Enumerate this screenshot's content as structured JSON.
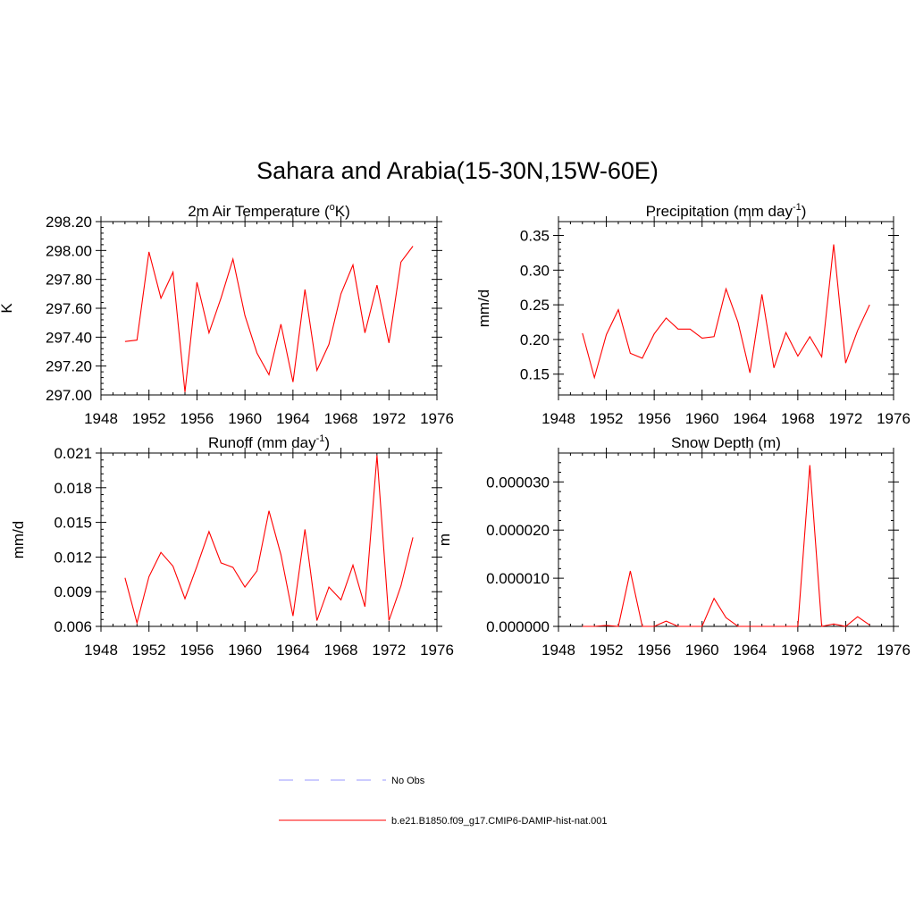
{
  "figure": {
    "title": "Sahara and Arabia(15-30N,15W-60E)"
  },
  "legend": {
    "entries": [
      {
        "label": "No Obs",
        "color": "#9999ff",
        "dash": true
      },
      {
        "label": "b.e21.B1850.f09_g17.CMIP6-DAMIP-hist-nat.001",
        "color": "#ff0000",
        "dash": false
      }
    ]
  },
  "chart_data": [
    {
      "type": "line",
      "title_main": "2m Air Temperature (",
      "title_sup": "o",
      "title_tail": "K)",
      "ylabel": "K",
      "xlim": [
        1948,
        1976
      ],
      "ylim": [
        297.0,
        298.2
      ],
      "xticks": [
        1948,
        1952,
        1956,
        1960,
        1964,
        1968,
        1972,
        1976
      ],
      "yticks": [
        297.0,
        297.2,
        297.4,
        297.6,
        297.8,
        298.0,
        298.2
      ],
      "yticklabels": [
        "297.00",
        "297.20",
        "297.40",
        "297.60",
        "297.80",
        "298.00",
        "298.20"
      ],
      "series": [
        {
          "color": "#ff0000",
          "x": [
            1950,
            1951,
            1952,
            1953,
            1954,
            1955,
            1956,
            1957,
            1958,
            1959,
            1960,
            1961,
            1962,
            1963,
            1964,
            1965,
            1966,
            1967,
            1968,
            1969,
            1970,
            1971,
            1972,
            1973,
            1974
          ],
          "y": [
            297.37,
            297.38,
            297.99,
            297.67,
            297.85,
            297.02,
            297.78,
            297.43,
            297.67,
            297.94,
            297.55,
            297.29,
            297.14,
            297.49,
            297.09,
            297.73,
            297.17,
            297.35,
            297.7,
            297.9,
            297.43,
            297.76,
            297.36,
            297.92,
            298.03
          ]
        }
      ]
    },
    {
      "type": "line",
      "title_main": "Precipitation (mm day",
      "title_sup": "-1",
      "title_tail": ")",
      "ylabel": "mm/d",
      "xlim": [
        1948,
        1976
      ],
      "ylim": [
        0.12,
        0.37
      ],
      "xticks": [
        1948,
        1952,
        1956,
        1960,
        1964,
        1968,
        1972,
        1976
      ],
      "yticks": [
        0.15,
        0.2,
        0.25,
        0.3,
        0.35
      ],
      "yticklabels": [
        "0.15",
        "0.20",
        "0.25",
        "0.30",
        "0.35"
      ],
      "series": [
        {
          "color": "#ff0000",
          "x": [
            1950,
            1951,
            1952,
            1953,
            1954,
            1955,
            1956,
            1957,
            1958,
            1959,
            1960,
            1961,
            1962,
            1963,
            1964,
            1965,
            1966,
            1967,
            1968,
            1969,
            1970,
            1971,
            1972,
            1973,
            1974
          ],
          "y": [
            0.209,
            0.145,
            0.207,
            0.243,
            0.18,
            0.173,
            0.208,
            0.231,
            0.215,
            0.215,
            0.202,
            0.204,
            0.273,
            0.225,
            0.152,
            0.265,
            0.159,
            0.21,
            0.176,
            0.204,
            0.175,
            0.337,
            0.166,
            0.213,
            0.25
          ]
        }
      ]
    },
    {
      "type": "line",
      "title_main": "Runoff (mm day",
      "title_sup": "-1",
      "title_tail": ")",
      "ylabel": "mm/d",
      "xlim": [
        1948,
        1976
      ],
      "ylim": [
        0.006,
        0.021
      ],
      "xticks": [
        1948,
        1952,
        1956,
        1960,
        1964,
        1968,
        1972,
        1976
      ],
      "yticks": [
        0.006,
        0.009,
        0.012,
        0.015,
        0.018,
        0.021
      ],
      "yticklabels": [
        "0.006",
        "0.009",
        "0.012",
        "0.015",
        "0.018",
        "0.021"
      ],
      "series": [
        {
          "color": "#ff0000",
          "x": [
            1950,
            1951,
            1952,
            1953,
            1954,
            1955,
            1956,
            1957,
            1958,
            1959,
            1960,
            1961,
            1962,
            1963,
            1964,
            1965,
            1966,
            1967,
            1968,
            1969,
            1970,
            1971,
            1972,
            1973,
            1974
          ],
          "y": [
            0.0102,
            0.0063,
            0.0103,
            0.0124,
            0.0112,
            0.0084,
            0.0112,
            0.0142,
            0.0115,
            0.0111,
            0.0094,
            0.0108,
            0.016,
            0.0122,
            0.0069,
            0.0144,
            0.0065,
            0.0094,
            0.0083,
            0.0113,
            0.0077,
            0.0208,
            0.0065,
            0.0095,
            0.0137
          ]
        }
      ]
    },
    {
      "type": "line",
      "title_main": "Snow Depth (m)",
      "title_sup": "",
      "title_tail": "",
      "ylabel": "m",
      "xlim": [
        1948,
        1976
      ],
      "ylim": [
        0.0,
        3.6e-05
      ],
      "xticks": [
        1948,
        1952,
        1956,
        1960,
        1964,
        1968,
        1972,
        1976
      ],
      "yticks": [
        0.0,
        1e-05,
        2e-05,
        3e-05
      ],
      "yticklabels": [
        "0.000000",
        "0.000010",
        "0.000020",
        "0.000030"
      ],
      "series": [
        {
          "color": "#ff0000",
          "x": [
            1950,
            1951,
            1952,
            1953,
            1954,
            1955,
            1956,
            1957,
            1958,
            1959,
            1960,
            1961,
            1962,
            1963,
            1964,
            1965,
            1966,
            1967,
            1968,
            1969,
            1970,
            1971,
            1972,
            1973,
            1974
          ],
          "y": [
            0.0,
            0.0,
            2e-07,
            0.0,
            1.15e-05,
            0.0,
            0.0,
            1.1e-06,
            0.0,
            0.0,
            0.0,
            5.8e-06,
            1.8e-06,
            0.0,
            0.0,
            0.0,
            0.0,
            0.0,
            0.0,
            3.35e-05,
            0.0,
            5e-07,
            0.0,
            2e-06,
            3e-07
          ]
        }
      ]
    }
  ]
}
